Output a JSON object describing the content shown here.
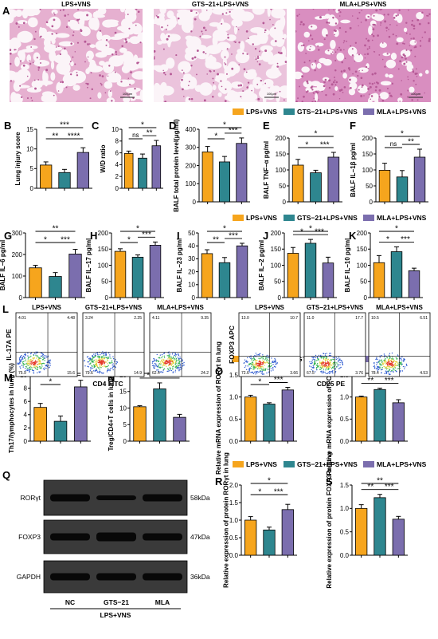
{
  "colors": {
    "lps": "#F6A51D",
    "gts": "#2E868F",
    "mla": "#7B6EAE",
    "nc_q": "#F6A51D",
    "bar_q1": "#F6A51D",
    "bar_q2": "#2E868F",
    "bar_q3": "#7B6EAE",
    "he_pink": "#E6A7C8",
    "he_dark": "#B65A96"
  },
  "histology": {
    "panel_letter": "A",
    "titles": [
      "LPS+VNS",
      "GTS−21+LPS+VNS",
      "MLA+LPS+VNS"
    ],
    "scale_label": "100μm"
  },
  "legends": [
    {
      "items": [
        "LPS+VNS",
        "GTS−21+LPS+VNS",
        "MLA+LPS+VNS"
      ]
    },
    {
      "items": [
        "LPS+VNS",
        "GTS−21+LPS+VNS",
        "MLA+LPS+VNS"
      ]
    },
    {
      "items": [
        "LPS+VNS",
        "GTS−21+LPS+VNS",
        "MLA+LPS+VNS"
      ]
    },
    {
      "items": [
        "LPS+VNS",
        "GTS−21+LPS+VNS",
        "MLA+LPS+VNS"
      ]
    }
  ],
  "chart_data": [
    {
      "panel": "B",
      "type": "bar",
      "ylabel": "Lung injury score",
      "ylim": [
        0,
        15
      ],
      "ticks": [
        0,
        5,
        10,
        15
      ],
      "values": [
        5.9,
        4.0,
        9.1
      ],
      "errors": [
        0.8,
        0.8,
        1.2
      ],
      "sig": [
        {
          "a": 0,
          "b": 1,
          "label": "**"
        },
        {
          "a": 1,
          "b": 2,
          "label": "****"
        },
        {
          "a": 0,
          "b": 2,
          "label": "***"
        }
      ]
    },
    {
      "panel": "C",
      "type": "bar",
      "ylabel": "W/D ratio",
      "ylim": [
        0,
        10
      ],
      "ticks": [
        0,
        2,
        4,
        6,
        8,
        10
      ],
      "values": [
        5.9,
        5.1,
        7.2
      ],
      "errors": [
        0.4,
        0.7,
        0.9
      ],
      "sig": [
        {
          "a": 0,
          "b": 1,
          "label": "ns"
        },
        {
          "a": 1,
          "b": 2,
          "label": "**"
        },
        {
          "a": 0,
          "b": 2,
          "label": "*"
        }
      ]
    },
    {
      "panel": "D",
      "type": "bar",
      "ylabel": "BALF total protein level(μg/ml)",
      "ylim": [
        0,
        400
      ],
      "ticks": [
        0,
        100,
        200,
        300,
        400
      ],
      "values": [
        275,
        220,
        322
      ],
      "errors": [
        30,
        30,
        30
      ],
      "sig": [
        {
          "a": 0,
          "b": 1,
          "label": "*"
        },
        {
          "a": 1,
          "b": 2,
          "label": "***"
        },
        {
          "a": 0,
          "b": 2,
          "label": "*"
        }
      ]
    },
    {
      "panel": "E",
      "type": "bar",
      "ylabel": "BALF TNF−α pg/ml",
      "ylim": [
        0,
        200
      ],
      "ticks": [
        0,
        50,
        100,
        150,
        200
      ],
      "values": [
        115,
        91,
        140
      ],
      "errors": [
        18,
        8,
        15
      ],
      "sig": [
        {
          "a": 0,
          "b": 1,
          "label": "*"
        },
        {
          "a": 1,
          "b": 2,
          "label": "***"
        },
        {
          "a": 0,
          "b": 2,
          "label": "*"
        }
      ]
    },
    {
      "panel": "F",
      "type": "bar",
      "ylabel": "BALF IL−1β pg/ml",
      "ylim": [
        0,
        200
      ],
      "ticks": [
        0,
        50,
        100,
        150,
        200
      ],
      "values": [
        99,
        78,
        140
      ],
      "errors": [
        22,
        20,
        25
      ],
      "sig": [
        {
          "a": 0,
          "b": 1,
          "label": "ns"
        },
        {
          "a": 1,
          "b": 2,
          "label": "**"
        },
        {
          "a": 0,
          "b": 2,
          "label": "*"
        }
      ]
    },
    {
      "panel": "G",
      "type": "bar",
      "ylabel": "BALF IL−6 pg/ml",
      "ylim": [
        0,
        300
      ],
      "ticks": [
        0,
        100,
        200,
        300
      ],
      "values": [
        138,
        98,
        202
      ],
      "errors": [
        12,
        18,
        22
      ],
      "sig": [
        {
          "a": 0,
          "b": 1,
          "label": "*"
        },
        {
          "a": 1,
          "b": 2,
          "label": "***"
        },
        {
          "a": 0,
          "b": 2,
          "label": "**"
        }
      ]
    },
    {
      "panel": "H",
      "type": "bar",
      "ylabel": "BALF IL−17 pg/ml",
      "ylim": [
        0,
        200
      ],
      "ticks": [
        0,
        50,
        100,
        150,
        200
      ],
      "values": [
        143,
        125,
        162
      ],
      "errors": [
        8,
        7,
        10
      ],
      "sig": [
        {
          "a": 0,
          "b": 1,
          "label": "*"
        },
        {
          "a": 1,
          "b": 2,
          "label": "***"
        },
        {
          "a": 0,
          "b": 2,
          "label": "*"
        }
      ]
    },
    {
      "panel": "I",
      "type": "bar",
      "ylabel": "BALF IL−23 pg/ml",
      "ylim": [
        0,
        50
      ],
      "ticks": [
        0,
        10,
        20,
        30,
        40,
        50
      ],
      "values": [
        34,
        27,
        40
      ],
      "errors": [
        3,
        4,
        2
      ],
      "sig": [
        {
          "a": 0,
          "b": 1,
          "label": "**"
        },
        {
          "a": 1,
          "b": 2,
          "label": "***"
        },
        {
          "a": 0,
          "b": 2,
          "label": "*"
        }
      ]
    },
    {
      "panel": "J",
      "type": "bar",
      "ylabel": "BALF IL−2 pg/ml",
      "ylim": [
        0,
        200
      ],
      "ticks": [
        0,
        50,
        100,
        150,
        200
      ],
      "values": [
        137,
        168,
        107
      ],
      "errors": [
        18,
        12,
        18
      ],
      "sig": [
        {
          "a": 0,
          "b": 1,
          "label": "*"
        },
        {
          "a": 1,
          "b": 2,
          "label": "***"
        },
        {
          "a": 0,
          "b": 2,
          "label": "*"
        }
      ]
    },
    {
      "panel": "K",
      "type": "bar",
      "ylabel": "BALF IL−10 pg/ml",
      "ylim": [
        0,
        200
      ],
      "ticks": [
        0,
        50,
        100,
        150,
        200
      ],
      "values": [
        108,
        142,
        83
      ],
      "errors": [
        22,
        15,
        8
      ],
      "sig": [
        {
          "a": 0,
          "b": 1,
          "label": "*"
        },
        {
          "a": 1,
          "b": 2,
          "label": "***"
        },
        {
          "a": 0,
          "b": 2,
          "label": "*"
        }
      ]
    },
    {
      "panel": "M",
      "type": "bar",
      "ylabel": "Th17/lymphocytes in lung (%)",
      "ylim": [
        0,
        10
      ],
      "ticks": [
        0,
        2,
        4,
        6,
        8,
        10
      ],
      "values": [
        5.1,
        3.0,
        8.2
      ],
      "errors": [
        0.6,
        0.8,
        1.0
      ],
      "sig": [
        {
          "a": 0,
          "b": 1,
          "label": "*"
        },
        {
          "a": 1,
          "b": 2,
          "label": "***"
        },
        {
          "a": 0,
          "b": 2,
          "label": "**"
        }
      ]
    },
    {
      "panel": "N",
      "type": "bar",
      "ylabel": "Treg/CD4+T cells in lung (%)",
      "ylim": [
        0,
        20
      ],
      "ticks": [
        0,
        5,
        10,
        15,
        20
      ],
      "values": [
        10.4,
        15.8,
        7.2
      ],
      "errors": [
        0.3,
        1.8,
        0.9
      ],
      "sig": [
        {
          "a": 0,
          "b": 1,
          "label": "**"
        },
        {
          "a": 1,
          "b": 2,
          "label": "***"
        },
        {
          "a": 0,
          "b": 2,
          "label": "*"
        }
      ]
    },
    {
      "panel": "O",
      "type": "bar",
      "ylabel": "Relative mRNA expression of RORγt in lung",
      "ylim": [
        0,
        1.5
      ],
      "ticks": [
        0.0,
        0.5,
        1.0,
        1.5
      ],
      "values": [
        1.0,
        0.84,
        1.16
      ],
      "errors": [
        0.04,
        0.03,
        0.06
      ],
      "sig": [
        {
          "a": 0,
          "b": 1,
          "label": "*"
        },
        {
          "a": 1,
          "b": 2,
          "label": "***"
        },
        {
          "a": 0,
          "b": 2,
          "label": "**"
        }
      ]
    },
    {
      "panel": "P",
      "type": "bar",
      "ylabel": "Relative mRNA expression of FOXP3 in lung",
      "ylim": [
        0,
        1.5
      ],
      "ticks": [
        0.0,
        0.5,
        1.0,
        1.5
      ],
      "values": [
        1.0,
        1.17,
        0.87
      ],
      "errors": [
        0.02,
        0.03,
        0.07
      ],
      "sig": [
        {
          "a": 0,
          "b": 1,
          "label": "**"
        },
        {
          "a": 1,
          "b": 2,
          "label": "***"
        },
        {
          "a": 0,
          "b": 2,
          "label": "*"
        }
      ]
    },
    {
      "panel": "R",
      "type": "bar",
      "ylabel": "Relative expression of protein RORγt in lung",
      "ylim": [
        0,
        2.0
      ],
      "ticks": [
        0.0,
        0.5,
        1.0,
        1.5,
        2.0
      ],
      "values": [
        1.0,
        0.72,
        1.3
      ],
      "errors": [
        0.1,
        0.08,
        0.15
      ],
      "sig": [
        {
          "a": 0,
          "b": 1,
          "label": "*"
        },
        {
          "a": 1,
          "b": 2,
          "label": "***"
        },
        {
          "a": 0,
          "b": 2,
          "label": "*"
        }
      ]
    },
    {
      "panel": "S",
      "type": "bar",
      "ylabel": "Relative expression of protein FOXP3 in lung",
      "ylim": [
        0,
        1.5
      ],
      "ticks": [
        0.0,
        0.5,
        1.0,
        1.5
      ],
      "values": [
        1.0,
        1.23,
        0.77
      ],
      "errors": [
        0.08,
        0.07,
        0.06
      ],
      "sig": [
        {
          "a": 0,
          "b": 1,
          "label": "**"
        },
        {
          "a": 1,
          "b": 2,
          "label": "***"
        },
        {
          "a": 0,
          "b": 2,
          "label": "**"
        }
      ]
    }
  ],
  "flow": {
    "panel_letter": "L",
    "left": {
      "titles": [
        "LPS+VNS",
        "GTS−21+LPS+VNS",
        "MLA+LPS+VNS"
      ],
      "ylabel": "IL-17A PE",
      "xlabel": "CD4 FITC",
      "quadrants": [
        [
          "4.01",
          "4.48",
          "75.9",
          "15.6"
        ],
        [
          "3.24",
          "2.25",
          "79.6",
          "14.9"
        ],
        [
          "4.11",
          "9.35",
          "62.4",
          "24.2"
        ]
      ]
    },
    "right": {
      "titles": [
        "LPS+VNS",
        "GTS−21+LPS+VNS",
        "MLA+LPS+VNS"
      ],
      "ylabel": "FOXP3 APC",
      "xlabel": "CD25 PE",
      "quadrants": [
        [
          "13.0",
          "10.7",
          "72.6",
          "3.66"
        ],
        [
          "11.0",
          "17.7",
          "67.5",
          "3.76"
        ],
        [
          "10.5",
          "6.51",
          "78.4",
          "4.53"
        ]
      ]
    }
  },
  "western": {
    "panel_letter": "Q",
    "rows": [
      {
        "label": "RORγt",
        "kda": "58kDa"
      },
      {
        "label": "FOXP3",
        "kda": "47kDa"
      },
      {
        "label": "GAPDH",
        "kda": "36kDa"
      }
    ],
    "lanes": [
      "NC",
      "GTS−21",
      "MLA"
    ],
    "group_label": "LPS+VNS"
  }
}
